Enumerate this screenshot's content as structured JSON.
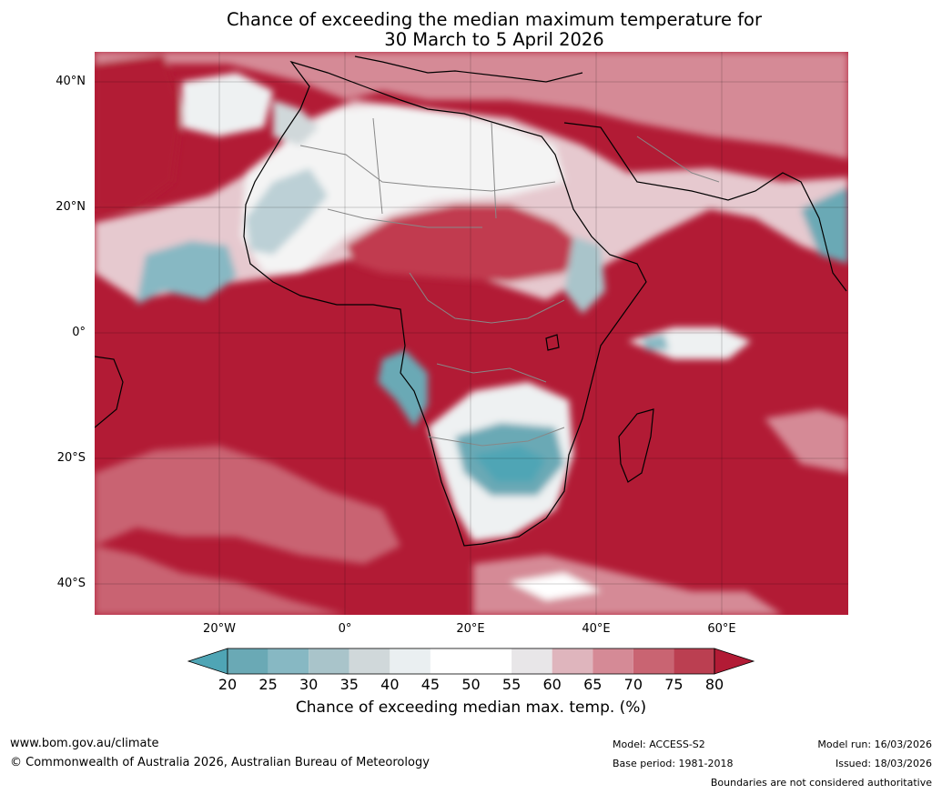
{
  "title": {
    "line1": "Chance of exceeding the median maximum temperature for",
    "line2": "30 March to 5 April 2026"
  },
  "axes": {
    "lat_labels": [
      "40°N",
      "20°N",
      "0°",
      "20°S",
      "40°S"
    ],
    "lon_labels": [
      "20°W",
      "0°",
      "20°E",
      "40°E",
      "60°E"
    ]
  },
  "colorbar": {
    "ticks": [
      "20",
      "25",
      "30",
      "35",
      "40",
      "45",
      "50",
      "55",
      "60",
      "65",
      "70",
      "75",
      "80"
    ],
    "colors": [
      "#4fa5b5",
      "#6aa9b5",
      "#87b8c3",
      "#a9c4ca",
      "#d0d8da",
      "#eaeff1",
      "#ffffff",
      "#ffffff",
      "#e8e6e8",
      "#dfb5bd",
      "#d58a96",
      "#c96472",
      "#bb3f51",
      "#b21b35"
    ],
    "title": "Chance of exceeding median max. temp. (%)"
  },
  "footer": {
    "url": "www.bom.gov.au/climate",
    "copyright": "© Commonwealth of Australia 2026, Australian Bureau of Meteorology",
    "model": "Model: ACCESS-S2",
    "base_period": "Base period: 1981-2018",
    "model_run": "Model run: 16/03/2026",
    "issued": "Issued: 18/03/2026",
    "disclaimer": "Boundaries are not considered authoritative"
  }
}
